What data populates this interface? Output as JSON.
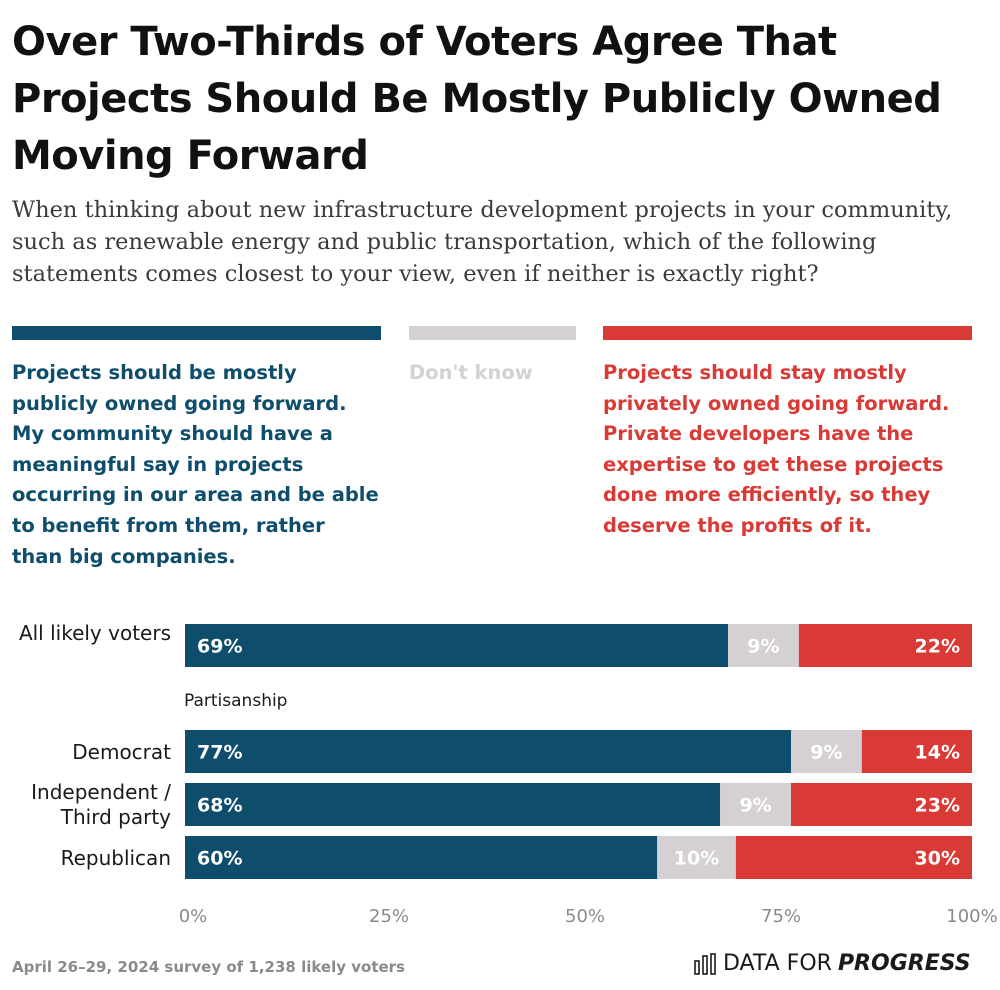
{
  "title": "Over Two-Thirds of Voters Agree That Projects Should Be Mostly Publicly Owned Moving Forward",
  "subtitle": "When thinking about new infrastructure development projects in your community, such as renewable energy and public transportation, which of the following statements comes closest to your view, even if neither is exactly right?",
  "legend": [
    {
      "label": "Projects should be mostly publicly owned going forward. My community should have a meaningful say in projects occurring in our area and be able to benefit from them, rather than big companies.",
      "color": "#0e4d6b"
    },
    {
      "label": "Don't know",
      "color": "#d4d0d4"
    },
    {
      "label": "Projects should stay mostly privately owned going forward. Private developers have the expertise to get these projects done more efficiently, so they deserve the profits of it.",
      "color": "#da3a35"
    }
  ],
  "group_label": "Partisanship",
  "footnote": "April 26–29, 2024 survey of 1,238 likely voters",
  "logo": {
    "text_regular": "DATA FOR",
    "text_bold": "PROGRESS",
    "icon": "bar-chart-icon"
  },
  "chart_data": {
    "type": "bar",
    "orientation": "horizontal",
    "stacked": true,
    "title": "Over Two-Thirds of Voters Agree That Projects Should Be Mostly Publicly Owned Moving Forward",
    "xlim": [
      0,
      100
    ],
    "x_ticks": [
      "0%",
      "25%",
      "50%",
      "75%",
      "100%"
    ],
    "categories": [
      "All likely voters",
      "Democrat",
      "Independent / Third party",
      "Republican"
    ],
    "series": [
      {
        "name": "Projects should be mostly publicly owned going forward",
        "color": "#0e4d6b",
        "label_color": "#ffffff",
        "values": [
          69,
          77,
          68,
          60
        ],
        "labels": [
          "69%",
          "77%",
          "68%",
          "60%"
        ]
      },
      {
        "name": "Don't know",
        "color": "#d4d0d4",
        "label_color": "#ffffff",
        "values": [
          9,
          9,
          9,
          10
        ],
        "labels": [
          "9%",
          "9%",
          "9%",
          "10%"
        ]
      },
      {
        "name": "Projects should stay mostly privately owned going forward",
        "color": "#da3a35",
        "label_color": "#ffffff",
        "values": [
          22,
          14,
          23,
          30
        ],
        "labels": [
          "22%",
          "14%",
          "23%",
          "30%"
        ]
      }
    ]
  }
}
